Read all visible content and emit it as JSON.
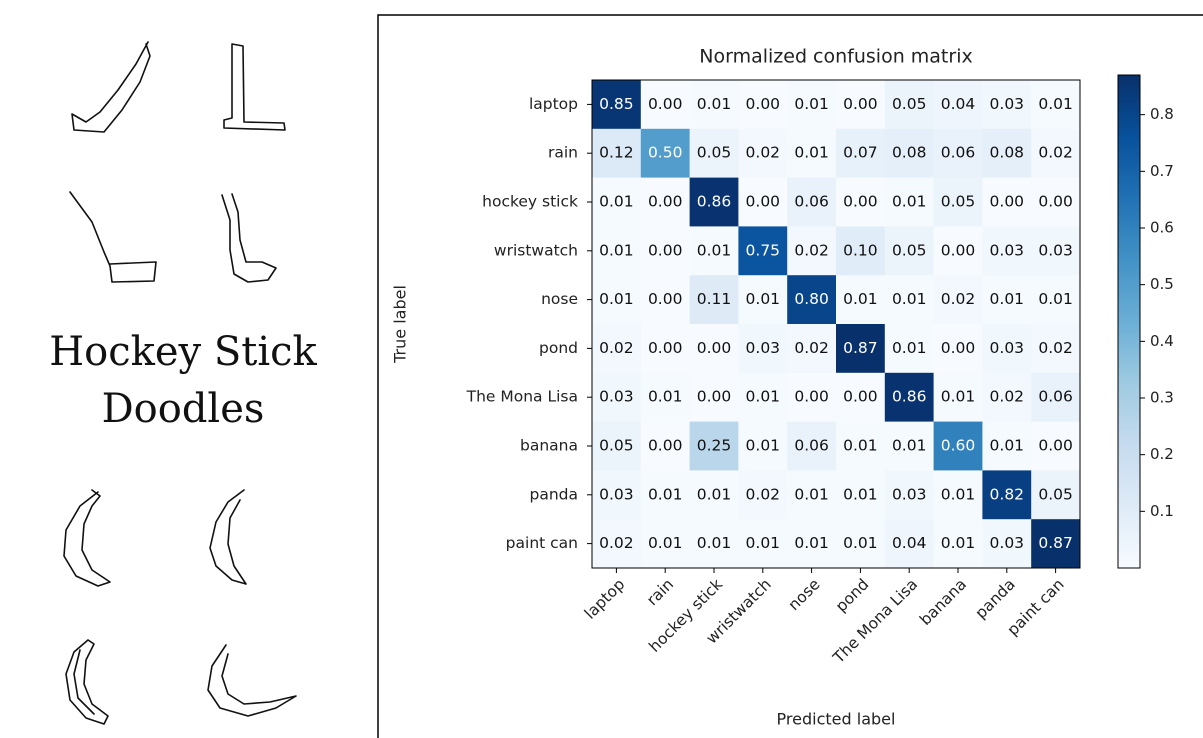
{
  "caption": {
    "lines": [
      "Hockey Stick",
      "Doodles"
    ]
  },
  "chart_data": {
    "type": "heatmap",
    "title": "Normalized confusion matrix",
    "x_label": "Predicted label",
    "y_label": "True label",
    "colormap": "Blues",
    "x_categories": [
      "laptop",
      "rain",
      "hockey stick",
      "wristwatch",
      "nose",
      "pond",
      "The Mona Lisa",
      "banana",
      "panda",
      "paint can"
    ],
    "y_categories": [
      "laptop",
      "rain",
      "hockey stick",
      "wristwatch",
      "nose",
      "pond",
      "The Mona Lisa",
      "banana",
      "panda",
      "paint can"
    ],
    "values": [
      [
        0.85,
        0,
        0.01,
        0,
        0.01,
        0,
        0.05,
        0.04,
        0.03,
        0.01
      ],
      [
        0.12,
        0.5,
        0.05,
        0.02,
        0.01,
        0.07,
        0.08,
        0.06,
        0.08,
        0.02
      ],
      [
        0.01,
        0,
        0.86,
        0,
        0.06,
        0,
        0.01,
        0.05,
        0,
        0
      ],
      [
        0.01,
        0,
        0.01,
        0.75,
        0.02,
        0.1,
        0.05,
        0,
        0.03,
        0.03
      ],
      [
        0.01,
        0,
        0.11,
        0.01,
        0.8,
        0.01,
        0.01,
        0.02,
        0.01,
        0.01
      ],
      [
        0.02,
        0,
        0,
        0.03,
        0.02,
        0.87,
        0.01,
        0,
        0.03,
        0.02
      ],
      [
        0.03,
        0.01,
        0,
        0.01,
        0,
        0,
        0.86,
        0.01,
        0.02,
        0.06
      ],
      [
        0.05,
        0,
        0.25,
        0.01,
        0.06,
        0.01,
        0.01,
        0.6,
        0.01,
        0
      ],
      [
        0.03,
        0.01,
        0.01,
        0.02,
        0.01,
        0.01,
        0.03,
        0.01,
        0.82,
        0.05
      ],
      [
        0.02,
        0.01,
        0.01,
        0.01,
        0.01,
        0.01,
        0.04,
        0.01,
        0.03,
        0.87
      ]
    ],
    "value_labels": [
      [
        "0.85",
        "0.00",
        "0.01",
        "0.00",
        "0.01",
        "0.00",
        "0.05",
        "0.04",
        "0.03",
        "0.01"
      ],
      [
        "0.12",
        "0.50",
        "0.05",
        "0.02",
        "0.01",
        "0.07",
        "0.08",
        "0.06",
        "0.08",
        "0.02"
      ],
      [
        "0.01",
        "0.00",
        "0.86",
        "0.00",
        "0.06",
        "0.00",
        "0.01",
        "0.05",
        "0.00",
        "0.00"
      ],
      [
        "0.01",
        "0.00",
        "0.01",
        "0.75",
        "0.02",
        "0.10",
        "0.05",
        "0.00",
        "0.03",
        "0.03"
      ],
      [
        "0.01",
        "0.00",
        "0.11",
        "0.01",
        "0.80",
        "0.01",
        "0.01",
        "0.02",
        "0.01",
        "0.01"
      ],
      [
        "0.02",
        "0.00",
        "0.00",
        "0.03",
        "0.02",
        "0.87",
        "0.01",
        "0.00",
        "0.03",
        "0.02"
      ],
      [
        "0.03",
        "0.01",
        "0.00",
        "0.01",
        "0.00",
        "0.00",
        "0.86",
        "0.01",
        "0.02",
        "0.06"
      ],
      [
        "0.05",
        "0.00",
        "0.25",
        "0.01",
        "0.06",
        "0.01",
        "0.01",
        "0.60",
        "0.01",
        "0.00"
      ],
      [
        "0.03",
        "0.01",
        "0.01",
        "0.02",
        "0.01",
        "0.01",
        "0.03",
        "0.01",
        "0.82",
        "0.05"
      ],
      [
        "0.02",
        "0.01",
        "0.01",
        "0.01",
        "0.01",
        "0.01",
        "0.04",
        "0.01",
        "0.03",
        "0.87"
      ]
    ],
    "zlim": [
      0,
      0.87
    ],
    "zticks": [
      0.1,
      0.2,
      0.3,
      0.4,
      0.5,
      0.6,
      0.7,
      0.8
    ]
  }
}
